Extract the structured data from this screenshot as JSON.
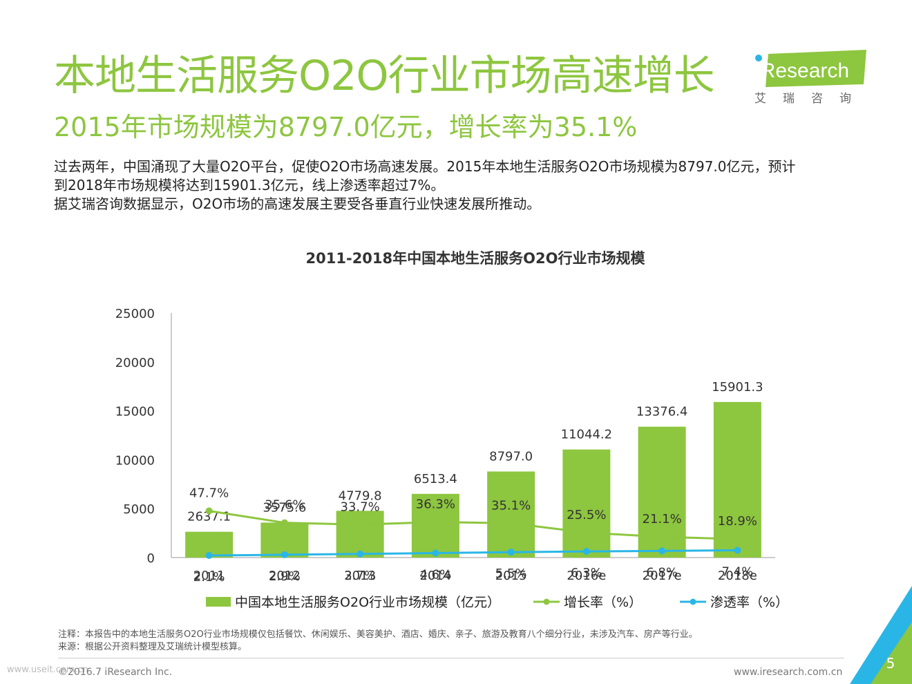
{
  "header": {
    "title": "本地生活服务O2O行业市场高速增长",
    "subtitle": "2015年市场规模为8797.0亿元，增长率为35.1%"
  },
  "logo": {
    "wordmark": "iResearch",
    "chinese": "艾瑞咨询"
  },
  "description": {
    "line1": "过去两年，中国涌现了大量O2O平台，促使O2O市场高速发展。2015年本地生活服务O2O市场规模为8797.0亿元，预计",
    "line2": "到2018年市场规模将达到15901.3亿元，线上渗透率超过7%。",
    "line3": "据艾瑞咨询数据显示，O2O市场的高速发展主要受各垂直行业快速发展所推动。"
  },
  "chart_data": {
    "type": "bar",
    "title": "2011-2018年中国本地生活服务O2O行业市场规模",
    "categories": [
      "2011",
      "2012",
      "2013",
      "2014",
      "2015",
      "2016e",
      "2017e",
      "2018e"
    ],
    "series": [
      {
        "name": "中国本地生活服务O2O行业市场规模（亿元）",
        "kind": "bar",
        "values": [
          2637.1,
          3575.6,
          4779.8,
          6513.4,
          8797.0,
          11044.2,
          13376.4,
          15901.3
        ],
        "labels": [
          "2637.1",
          "3575.6",
          "4779.8",
          "6513.4",
          "8797.0",
          "11044.2",
          "13376.4",
          "15901.3"
        ]
      },
      {
        "name": "增长率（%）",
        "kind": "line",
        "values": [
          47.7,
          35.6,
          33.7,
          36.3,
          35.1,
          25.5,
          21.1,
          18.9
        ],
        "labels": [
          "47.7%",
          "35.6%",
          "33.7%",
          "36.3%",
          "35.1%",
          "25.5%",
          "21.1%",
          "18.9%"
        ]
      },
      {
        "name": "渗透率（%）",
        "kind": "line",
        "values": [
          2.1,
          2.9,
          3.7,
          4.6,
          5.5,
          6.3,
          6.8,
          7.4
        ],
        "labels": [
          "2.1%",
          "2.9%",
          "3.7%",
          "4.6%",
          "5.5%",
          "6.3%",
          "6.8%",
          "7.4%"
        ]
      }
    ],
    "ylim": [
      0,
      25000
    ],
    "yticks": [
      0,
      5000,
      10000,
      15000,
      20000,
      25000
    ],
    "ytick_labels": [
      "0",
      "5000",
      "10000",
      "15000",
      "20000",
      "25000"
    ],
    "legend_position": "bottom",
    "colors": {
      "bar": "#8dc63f",
      "growth": "#8dc63f",
      "penetration": "#29b6e6"
    }
  },
  "legend": {
    "bar": "中国本地生活服务O2O行业市场规模（亿元）",
    "growth": "增长率（%）",
    "penetration": "渗透率（%）"
  },
  "notes": {
    "note": "注释：本报告中的本地生活服务O2O行业市场规模仅包括餐饮、休闲娱乐、美容美护、酒店、婚庆、亲子、旅游及教育八个细分行业，未涉及汽车、房产等行业。",
    "source": "来源：根据公开资料整理及艾瑞统计模型核算。"
  },
  "footer": {
    "copyright": "©2016.7 iResearch Inc.",
    "website": "www.iresearch.com.cn",
    "watermark": "www.useit.com.cn",
    "page_number": "5"
  }
}
